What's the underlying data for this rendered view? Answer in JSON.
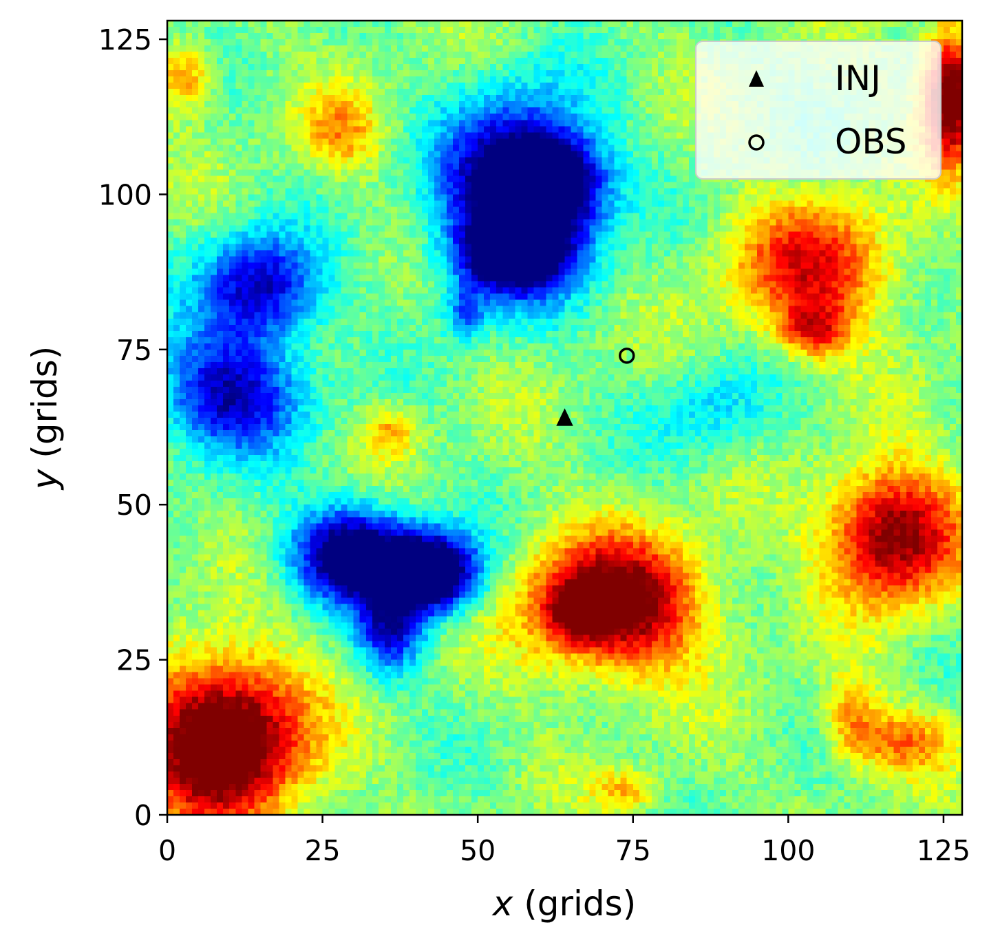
{
  "chart_data": {
    "type": "heatmap",
    "title": "",
    "xlabel": {
      "var": "x",
      "unit": " (grids)"
    },
    "ylabel": {
      "var": "y",
      "unit": " (grids)"
    },
    "xlim": [
      0,
      128
    ],
    "ylim": [
      0,
      128
    ],
    "grid_size": 128,
    "colormap": "jet",
    "x_ticks": [
      {
        "value": 0,
        "label": "0"
      },
      {
        "value": 25,
        "label": "25"
      },
      {
        "value": 50,
        "label": "50"
      },
      {
        "value": 75,
        "label": "75"
      },
      {
        "value": 100,
        "label": "100"
      },
      {
        "value": 125,
        "label": "125"
      }
    ],
    "y_ticks": [
      {
        "value": 0,
        "label": "0"
      },
      {
        "value": 25,
        "label": "25"
      },
      {
        "value": 50,
        "label": "50"
      },
      {
        "value": 75,
        "label": "75"
      },
      {
        "value": 100,
        "label": "100"
      },
      {
        "value": 125,
        "label": "125"
      }
    ],
    "field_features": [
      {
        "kind": "low",
        "x": 57,
        "y": 100,
        "rx": 11,
        "ry": 13,
        "strength": 0.75
      },
      {
        "kind": "low",
        "x": 55,
        "y": 90,
        "rx": 8,
        "ry": 5,
        "strength": 0.45
      },
      {
        "kind": "low",
        "x": 62,
        "y": 102,
        "rx": 7,
        "ry": 6,
        "strength": 0.4
      },
      {
        "kind": "low",
        "x": 30,
        "y": 42,
        "rx": 9,
        "ry": 7,
        "strength": 0.65
      },
      {
        "kind": "low",
        "x": 43,
        "y": 39,
        "rx": 7,
        "ry": 6,
        "strength": 0.7
      },
      {
        "kind": "low",
        "x": 36,
        "y": 30,
        "rx": 5,
        "ry": 7,
        "strength": 0.4
      },
      {
        "kind": "low",
        "x": 15,
        "y": 85,
        "rx": 9,
        "ry": 8,
        "strength": 0.45
      },
      {
        "kind": "low",
        "x": 10,
        "y": 68,
        "rx": 11,
        "ry": 9,
        "strength": 0.45
      },
      {
        "kind": "low",
        "x": 48,
        "y": 81,
        "rx": 3,
        "ry": 4,
        "strength": 0.25
      },
      {
        "kind": "low",
        "x": 88,
        "y": 65,
        "rx": 9,
        "ry": 7,
        "strength": 0.15
      },
      {
        "kind": "high",
        "x": 9,
        "y": 12,
        "rx": 12,
        "ry": 12,
        "strength": 0.7
      },
      {
        "kind": "high",
        "x": 72,
        "y": 34,
        "rx": 13,
        "ry": 10,
        "strength": 0.6
      },
      {
        "kind": "high",
        "x": 66,
        "y": 33,
        "rx": 4,
        "ry": 4,
        "strength": 0.3
      },
      {
        "kind": "high",
        "x": 117,
        "y": 45,
        "rx": 10,
        "ry": 10,
        "strength": 0.55
      },
      {
        "kind": "high",
        "x": 126,
        "y": 116,
        "rx": 4,
        "ry": 10,
        "strength": 0.65
      },
      {
        "kind": "high",
        "x": 104,
        "y": 88,
        "rx": 12,
        "ry": 10,
        "strength": 0.38
      },
      {
        "kind": "high",
        "x": 104,
        "y": 78,
        "rx": 5,
        "ry": 4,
        "strength": 0.3
      },
      {
        "kind": "high",
        "x": 118,
        "y": 12,
        "rx": 8,
        "ry": 5,
        "strength": 0.25
      },
      {
        "kind": "high",
        "x": 110,
        "y": 16,
        "rx": 4,
        "ry": 6,
        "strength": 0.2
      },
      {
        "kind": "high",
        "x": 3,
        "y": 119,
        "rx": 4,
        "ry": 5,
        "strength": 0.25
      },
      {
        "kind": "high",
        "x": 28,
        "y": 110,
        "rx": 6,
        "ry": 6,
        "strength": 0.2
      },
      {
        "kind": "high",
        "x": 36,
        "y": 62,
        "rx": 4,
        "ry": 4,
        "strength": 0.2
      },
      {
        "kind": "high",
        "x": 74,
        "y": 4,
        "rx": 5,
        "ry": 3,
        "strength": 0.2
      }
    ],
    "markers": [
      {
        "name": "INJ",
        "x": 64,
        "y": 64,
        "symbol": "triangle",
        "fill": "#000000"
      },
      {
        "name": "OBS",
        "x": 74,
        "y": 74,
        "symbol": "circle",
        "fill": "none"
      }
    ],
    "legend": {
      "placement": "top-right",
      "entries": [
        {
          "label": "INJ",
          "symbol": "triangle"
        },
        {
          "label": "OBS",
          "symbol": "circle"
        }
      ]
    }
  }
}
